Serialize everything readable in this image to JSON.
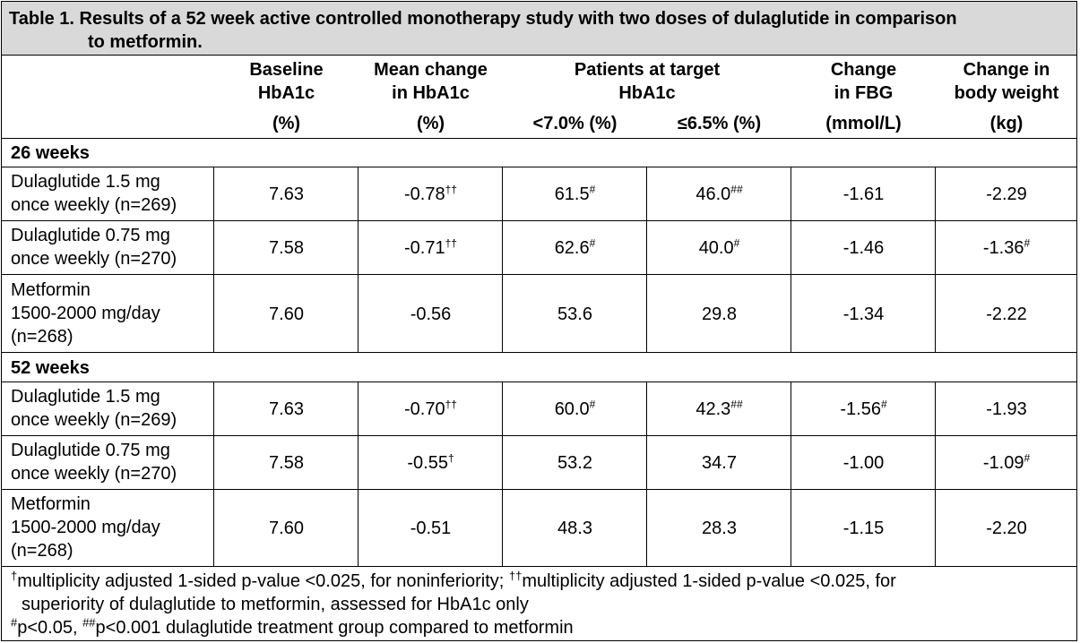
{
  "title": {
    "line1": "Table 1. Results of a 52 week active controlled monotherapy study with two doses of dulaglutide in comparison",
    "line2": "to metformin."
  },
  "headers": {
    "baseline": [
      "Baseline",
      "HbA1c",
      "(%)"
    ],
    "mean_change": [
      "Mean change",
      "in HbA1c",
      "(%)"
    ],
    "patients_target": [
      "Patients at target",
      "HbA1c"
    ],
    "lt70": "<7.0% (%)",
    "le65": "≤6.5% (%)",
    "fbg": [
      "Change",
      "in FBG",
      "(mmol/L)"
    ],
    "body_weight": [
      "Change in",
      "body weight",
      "(kg)"
    ]
  },
  "sections": [
    {
      "label": "26 weeks",
      "rows": [
        {
          "label": [
            "Dulaglutide 1.5 mg",
            "once weekly (n=269)"
          ],
          "cells": [
            {
              "v": "7.63",
              "s": ""
            },
            {
              "v": "-0.78",
              "s": "††"
            },
            {
              "v": "61.5",
              "s": "#"
            },
            {
              "v": "46.0",
              "s": "##"
            },
            {
              "v": "-1.61",
              "s": ""
            },
            {
              "v": "-2.29",
              "s": ""
            }
          ]
        },
        {
          "label": [
            "Dulaglutide 0.75 mg",
            "once weekly (n=270)"
          ],
          "cells": [
            {
              "v": "7.58",
              "s": ""
            },
            {
              "v": "-0.71",
              "s": "††"
            },
            {
              "v": "62.6",
              "s": "#"
            },
            {
              "v": "40.0",
              "s": "#"
            },
            {
              "v": "-1.46",
              "s": ""
            },
            {
              "v": "-1.36",
              "s": "#"
            }
          ]
        },
        {
          "label": [
            "Metformin",
            "1500-2000 mg/day",
            "(n=268)"
          ],
          "cells": [
            {
              "v": "7.60",
              "s": ""
            },
            {
              "v": "-0.56",
              "s": ""
            },
            {
              "v": "53.6",
              "s": ""
            },
            {
              "v": "29.8",
              "s": ""
            },
            {
              "v": "-1.34",
              "s": ""
            },
            {
              "v": "-2.22",
              "s": ""
            }
          ]
        }
      ]
    },
    {
      "label": "52 weeks",
      "rows": [
        {
          "label": [
            "Dulaglutide 1.5 mg",
            "once weekly (n=269)"
          ],
          "cells": [
            {
              "v": "7.63",
              "s": ""
            },
            {
              "v": "-0.70",
              "s": "††"
            },
            {
              "v": "60.0",
              "s": "#"
            },
            {
              "v": "42.3",
              "s": "##"
            },
            {
              "v": "-1.56",
              "s": "#"
            },
            {
              "v": "-1.93",
              "s": ""
            }
          ]
        },
        {
          "label": [
            "Dulaglutide 0.75 mg",
            "once weekly (n=270)"
          ],
          "cells": [
            {
              "v": "7.58",
              "s": ""
            },
            {
              "v": "-0.55",
              "s": "†"
            },
            {
              "v": "53.2",
              "s": ""
            },
            {
              "v": "34.7",
              "s": ""
            },
            {
              "v": "-1.00",
              "s": ""
            },
            {
              "v": "-1.09",
              "s": "#"
            }
          ]
        },
        {
          "label": [
            "Metformin",
            "1500-2000 mg/day",
            "(n=268)"
          ],
          "cells": [
            {
              "v": "7.60",
              "s": ""
            },
            {
              "v": "-0.51",
              "s": ""
            },
            {
              "v": "48.3",
              "s": ""
            },
            {
              "v": "28.3",
              "s": ""
            },
            {
              "v": "-1.15",
              "s": ""
            },
            {
              "v": "-2.20",
              "s": ""
            }
          ]
        }
      ]
    }
  ],
  "footnotes": {
    "f1_sym": "†",
    "f1_text": "multiplicity adjusted 1-sided p-value <0.025, for noninferiority; ",
    "f2_sym": "††",
    "f2_text": "multiplicity adjusted 1-sided p-value <0.025, for",
    "f2_cont": "superiority of dulaglutide to metformin, assessed for HbA1c only",
    "f3_sym": "#",
    "f3_text": "p<0.05, ",
    "f4_sym": "##",
    "f4_text": "p<0.001 dulaglutide treatment group compared to metformin"
  }
}
